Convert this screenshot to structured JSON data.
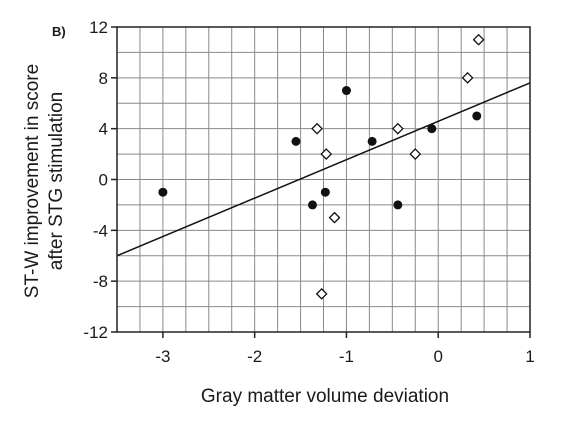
{
  "chart_data": {
    "type": "scatter",
    "panel_label": "B)",
    "title": "",
    "xlabel": "Gray matter volume deviation",
    "ylabel_lines": [
      "ST-W improvement in score",
      "after STG stimulation"
    ],
    "xlim": [
      -3.5,
      1.0
    ],
    "ylim": [
      -12,
      12
    ],
    "x_ticks": [
      -3,
      -2,
      -1,
      0,
      1
    ],
    "x_tick_labels": [
      "-3",
      "-2",
      "-1",
      "0",
      "1"
    ],
    "y_ticks": [
      12,
      8,
      4,
      0,
      -4,
      -8,
      -12
    ],
    "y_tick_labels": [
      "12",
      "8",
      "4",
      "0",
      "-4",
      "-8",
      "-12"
    ],
    "grid": true,
    "grid_x_step": 0.25,
    "grid_y_step": 2,
    "series": [
      {
        "marker": "filled-circle",
        "points": [
          {
            "x": -3.0,
            "y": -1
          },
          {
            "x": -1.55,
            "y": 3
          },
          {
            "x": -1.37,
            "y": -2
          },
          {
            "x": -1.23,
            "y": -1
          },
          {
            "x": -1.0,
            "y": 7
          },
          {
            "x": -0.72,
            "y": 3
          },
          {
            "x": -0.44,
            "y": -2
          },
          {
            "x": -0.07,
            "y": 4
          },
          {
            "x": 0.42,
            "y": 5
          }
        ]
      },
      {
        "marker": "open-diamond",
        "points": [
          {
            "x": -1.32,
            "y": 4
          },
          {
            "x": -1.22,
            "y": 2
          },
          {
            "x": -1.13,
            "y": -3
          },
          {
            "x": -1.27,
            "y": -9
          },
          {
            "x": -0.44,
            "y": 4
          },
          {
            "x": -0.25,
            "y": 2
          },
          {
            "x": 0.32,
            "y": 8
          },
          {
            "x": 0.44,
            "y": 11
          }
        ]
      }
    ],
    "fit_line": {
      "x": [
        -3.5,
        1.0
      ],
      "y": [
        -6,
        7.6
      ]
    },
    "colors": {
      "marks": "#111111",
      "grid": "#8a8a8a",
      "frame": "#222222"
    }
  }
}
